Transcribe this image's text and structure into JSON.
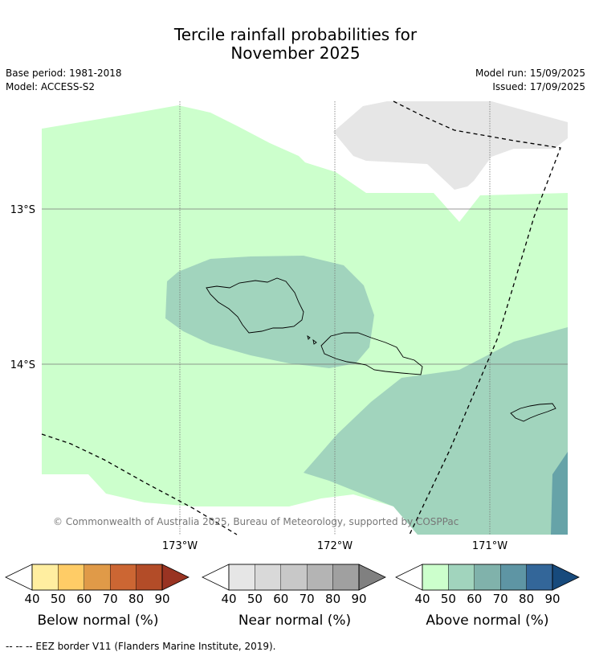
{
  "title": {
    "line1": "Tercile rainfall probabilities for",
    "line2": "November 2025"
  },
  "meta": {
    "base_period": "Base period: 1981-2018",
    "model": "Model: ACCESS-S2",
    "model_run": "Model run: 15/09/2025",
    "issued": "Issued: 17/09/2025"
  },
  "map": {
    "lat_labels": [
      "13°S",
      "14°S"
    ],
    "lon_labels": [
      "173°W",
      "172°W",
      "171°W"
    ],
    "copyright": "© Commonwealth of Australia 2025, Bureau of Meteorology, supported by COSPPac",
    "colors": {
      "above_50": "#ccffcc",
      "above_60": "#a1d4bd",
      "above_80": "#66a3a8",
      "near_40": "#e6e6e6",
      "coast": "#000000"
    }
  },
  "colorbars": [
    {
      "title": "Below normal (%)",
      "ticks": [
        "40",
        "50",
        "60",
        "70",
        "80",
        "90"
      ],
      "colors": [
        "#ffeea0",
        "#ffcc66",
        "#e09a48",
        "#cc6633",
        "#b34c28",
        "#993322"
      ]
    },
    {
      "title": "Near normal (%)",
      "ticks": [
        "40",
        "50",
        "60",
        "70",
        "80",
        "90"
      ],
      "colors": [
        "#e6e6e6",
        "#d9d9d9",
        "#c8c8c8",
        "#b4b4b4",
        "#a0a0a0",
        "#808080"
      ]
    },
    {
      "title": "Above normal (%)",
      "ticks": [
        "40",
        "50",
        "60",
        "70",
        "80",
        "90"
      ],
      "colors": [
        "#ccffcc",
        "#a1d4bd",
        "#80b2ab",
        "#5e95a4",
        "#336699",
        "#174a7c"
      ]
    }
  ],
  "footer": {
    "eez_legend": "--  --  -- EEZ border V11 (Flanders Marine Institute, 2019)."
  }
}
